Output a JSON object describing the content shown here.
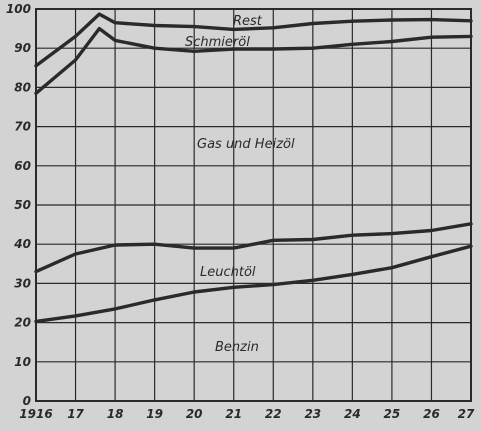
{
  "chart_data": {
    "type": "line",
    "title": "",
    "xlabel": "",
    "ylabel": "",
    "x_tick_labels": [
      "1916",
      "17",
      "18",
      "19",
      "20",
      "21",
      "22",
      "23",
      "24",
      "25",
      "26",
      "27"
    ],
    "x_range": [
      1916,
      1927
    ],
    "ylim": [
      0,
      100
    ],
    "y_ticks": [
      0,
      10,
      20,
      30,
      40,
      50,
      60,
      70,
      80,
      90,
      100
    ],
    "grid": true,
    "background_color": "#d3d3d3",
    "line_color": "#2a2a2a",
    "series": [
      {
        "x": [
          1916,
          1917,
          1917.6,
          1918,
          1919,
          1920,
          1921,
          1922,
          1923,
          1924,
          1925,
          1926,
          1927
        ],
        "values": [
          85.5,
          93,
          98.7,
          96.5,
          95.8,
          95.5,
          94.8,
          95.2,
          96.3,
          96.9,
          97.2,
          97.3,
          97
        ],
        "label_below": "Rest"
      },
      {
        "x": [
          1916,
          1917,
          1917.6,
          1918,
          1919,
          1920,
          1921,
          1922,
          1923,
          1924,
          1925,
          1926,
          1927
        ],
        "values": [
          78.5,
          87,
          95,
          92,
          90,
          89.2,
          89.8,
          89.8,
          90,
          91,
          91.7,
          92.8,
          93
        ],
        "label_below": "Schmieröl"
      },
      {
        "x": [
          1916,
          1917,
          1918,
          1919,
          1920,
          1921,
          1922,
          1923,
          1924,
          1925,
          1926,
          1927
        ],
        "values": [
          33,
          37.5,
          39.8,
          40,
          39,
          39,
          41,
          41.2,
          42.3,
          42.7,
          43.5,
          45.2
        ],
        "label_above": "Gas und Heizöl",
        "label_below": "Leuchtöl"
      },
      {
        "x": [
          1916,
          1917,
          1918,
          1919,
          1920,
          1921,
          1922,
          1923,
          1924,
          1925,
          1926,
          1927
        ],
        "values": [
          20.3,
          21.7,
          23.5,
          25.8,
          27.8,
          29,
          29.7,
          30.8,
          32.3,
          34,
          36.8,
          39.5
        ],
        "label_below": "Benzin"
      }
    ],
    "region_labels": [
      "Rest",
      "Schmieröl",
      "Gas und Heizöl",
      "Leuchtöl",
      "Benzin"
    ]
  }
}
